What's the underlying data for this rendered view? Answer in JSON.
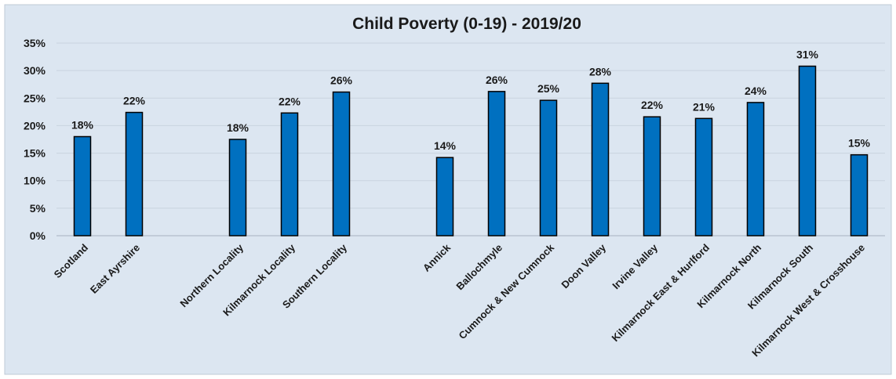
{
  "chart_data": {
    "type": "bar",
    "title": "Child Poverty (0-19) - 2019/20",
    "xlabel": "",
    "ylabel": "",
    "ylim": [
      0,
      35
    ],
    "yticks": [
      "0%",
      "5%",
      "10%",
      "15%",
      "20%",
      "25%",
      "30%",
      "35%"
    ],
    "grid": true,
    "legend": "none",
    "categories": [
      "Scotland",
      "East Ayrshire",
      "",
      "Northern Locality",
      "Kilmarnock Locality",
      "Southern Locality",
      "",
      "Annick",
      "Ballochmyle",
      "Cumnock & New Cumnock",
      "Doon Valley",
      "Irvine Valley",
      "Kilmarnock East & Hurlford",
      "Kilmarnock North",
      "Kilmarnock South",
      "Kilmarnock West & Crosshouse"
    ],
    "values": [
      18,
      22.4,
      null,
      17.5,
      22.3,
      26.1,
      null,
      14.2,
      26.2,
      24.6,
      27.7,
      21.6,
      21.3,
      24.2,
      30.8,
      14.7
    ],
    "data_labels": [
      "18%",
      "22%",
      "",
      "18%",
      "22%",
      "26%",
      "",
      "14%",
      "26%",
      "25%",
      "28%",
      "22%",
      "21%",
      "24%",
      "31%",
      "15%"
    ],
    "colors": {
      "bar": "#0070c0",
      "bar_edge": "#000000",
      "background": "#dce6f1",
      "grid": "#c9d3df",
      "border": "#bfc9d6"
    }
  }
}
